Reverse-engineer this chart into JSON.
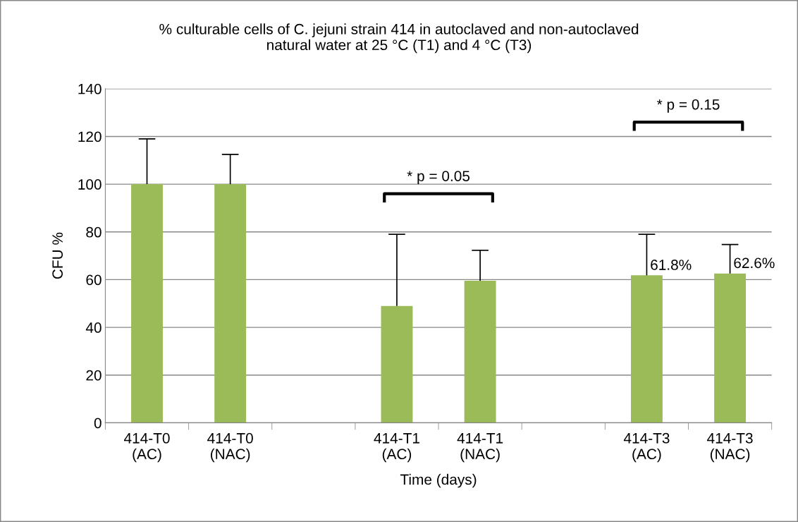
{
  "chart_data": {
    "type": "bar",
    "title": "% culturable cells of C. jejuni strain 414 in autoclaved and non-autoclaved\nnatural water at 25 °C (T1) and 4 °C (T3)",
    "xlabel": "Time (days)",
    "ylabel": "CFU %",
    "categories": [
      "414-T0\n(AC)",
      "414-T0\n(NAC)",
      null,
      "414-T1\n(AC)",
      "414-T1\n(NAC)",
      null,
      "414-T3\n(AC)",
      "414-T3\n(NAC)"
    ],
    "values": [
      100,
      100,
      null,
      49,
      59.5,
      null,
      61.8,
      62.6
    ],
    "errors": [
      [
        100,
        119
      ],
      [
        100,
        112.5
      ],
      null,
      [
        49,
        79
      ],
      [
        59.5,
        72.3
      ],
      null,
      [
        61.8,
        79
      ],
      [
        62.6,
        74.7
      ]
    ],
    "value_labels": [
      null,
      null,
      null,
      null,
      null,
      null,
      "61.8%",
      "62.6%"
    ],
    "color": "#9bbb59",
    "ylim": [
      0,
      140
    ],
    "yticks": [
      0,
      20,
      40,
      60,
      80,
      100,
      120,
      140
    ],
    "grid": "y",
    "legend": false,
    "annotations": [
      "* p = 0.05",
      "* p = 0.15"
    ]
  }
}
